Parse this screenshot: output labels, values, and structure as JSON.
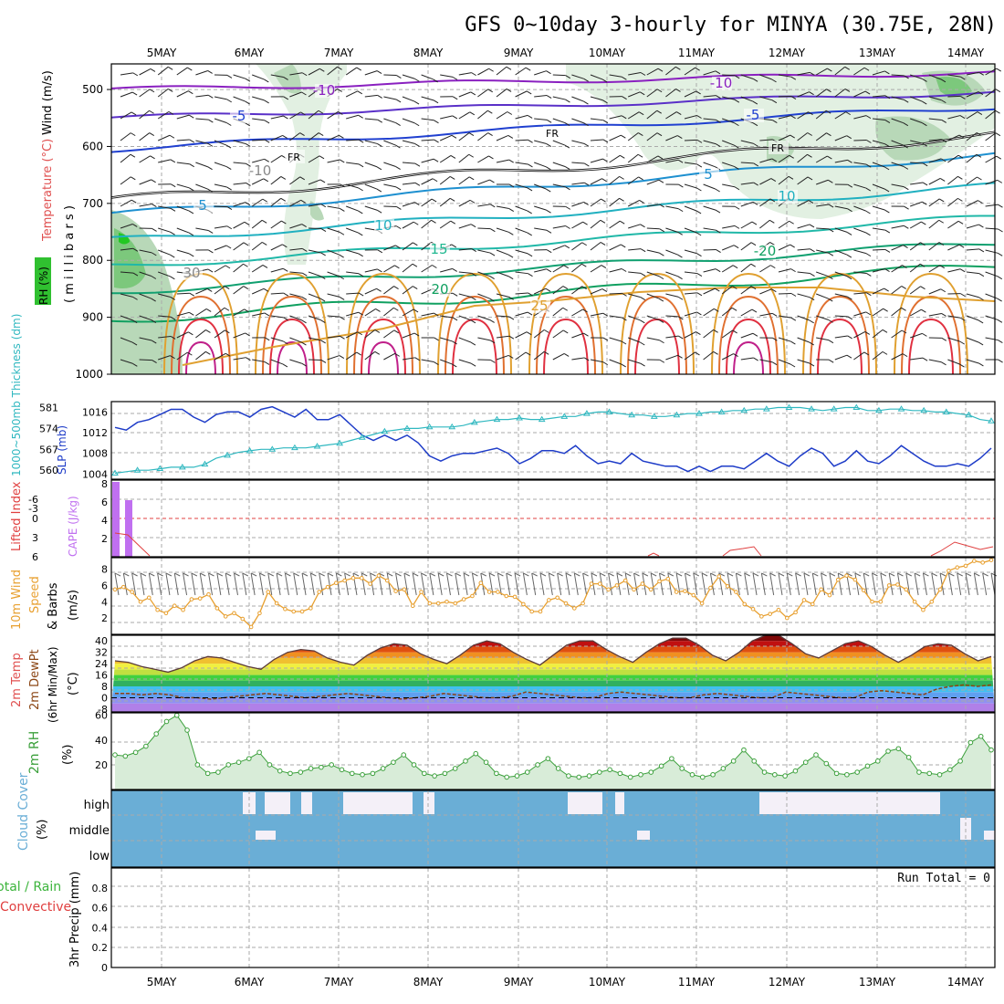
{
  "title": "GFS 0~10day 3-hourly for MINYA (30.75E, 28N)",
  "days": [
    "5MAY",
    "6MAY",
    "7MAY",
    "8MAY",
    "9MAY",
    "10MAY",
    "11MAY",
    "12MAY",
    "13MAY",
    "14MAY"
  ],
  "run_total": "Run Total = 0",
  "colors": {
    "frame": "#000000",
    "grid": "#aaaaaa",
    "slp": "#1e3cc8",
    "thickness": "#30b8c0",
    "cape": "#c070f0",
    "lifted": "#e04040",
    "wind_speed": "#e8a030",
    "dewpt": "#8b4513",
    "rh": "#3ca03c",
    "rh_fill": "#d8ecd8",
    "cloud": "#6aaed6",
    "cloud_clear": "#f4f0f8",
    "precip_total": "#3cb43c",
    "precip_conv": "#e04040"
  },
  "labels": {
    "upper_wind": "Wind (m/s)",
    "upper_temp": "Temperature (°C)",
    "upper_rh": "RH (%)",
    "upper_mb": "( m i l l i b a r s )",
    "thick": "1000~500mb Thickness (dm)",
    "slp": "SLP (mb)",
    "cape": "CAPE (J/kg)",
    "lifted": "Lifted Index",
    "wind10_a": "10m Wind",
    "wind10_b": "Speed",
    "wind10_c": "& Barbs",
    "wind10_unit": "(m/s)",
    "t2_a": "2m Temp",
    "t2_b": "2m DewPt",
    "t2_c": "(6hr Min/Max)",
    "t2_unit": "(°C)",
    "rh2": "2m RH",
    "rh2_unit": "(%)",
    "cloud": "Cloud Cover",
    "cloud_unit": "(%)",
    "precip_a": "Total / Rain",
    "precip_b": "Convective",
    "precip_unit": "3hr Precip (mm)"
  },
  "upper_air": {
    "pressure_ticks": [
      "500",
      "600",
      "700",
      "800",
      "900",
      "1000"
    ],
    "contour_labels": [
      {
        "text": "-10",
        "color": "#8a20c0"
      },
      {
        "text": "-10",
        "color": "#8a20c0"
      },
      {
        "text": "-5",
        "color": "#2040d0"
      },
      {
        "text": "-5",
        "color": "#2040d0"
      },
      {
        "text": "FR",
        "color": "#000000"
      },
      {
        "text": "FR",
        "color": "#000000"
      },
      {
        "text": "FR",
        "color": "#000000"
      },
      {
        "text": "5",
        "color": "#1e90d0"
      },
      {
        "text": "5",
        "color": "#1e90d0"
      },
      {
        "text": "10",
        "color": "#20b0c0"
      },
      {
        "text": "10",
        "color": "#20b0c0"
      },
      {
        "text": "15",
        "color": "#20b890"
      },
      {
        "text": "20",
        "color": "#10a060"
      },
      {
        "text": "-20",
        "color": "#10a060"
      },
      {
        "text": "25",
        "color": "#e0a030"
      },
      {
        "text": "-10",
        "color": "#888888"
      },
      {
        "text": "30",
        "color": "#888888"
      }
    ]
  },
  "chart_data": [
    {
      "type": "line",
      "name": "SLP",
      "ylabel": "SLP (mb)",
      "ylim": [
        1003,
        1018
      ],
      "yticks": [
        "1004",
        "1008",
        "1012",
        "1016"
      ],
      "values": [
        1013,
        1012.5,
        1014,
        1014.5,
        1015.5,
        1016.5,
        1016.5,
        1015,
        1014,
        1015.5,
        1016,
        1016,
        1015,
        1016.5,
        1017,
        1016,
        1015,
        1016.5,
        1014.5,
        1014.5,
        1015.5,
        1013.5,
        1011.5,
        1010.5,
        1011.5,
        1010.5,
        1011.5,
        1010,
        1007.5,
        1006.5,
        1007.5,
        1008,
        1008,
        1008.5,
        1009,
        1008,
        1006,
        1007,
        1008.5,
        1008.5,
        1008,
        1009.5,
        1007.5,
        1006,
        1006.5,
        1006,
        1008,
        1006.5,
        1006,
        1005.5,
        1005.5,
        1004.5,
        1005.5,
        1004.5,
        1005.5,
        1005.5,
        1005,
        1006.5,
        1008,
        1006.5,
        1005.5,
        1007.5,
        1009,
        1008,
        1005.5,
        1006.5,
        1008.5,
        1006.5,
        1006,
        1007.5,
        1009.5,
        1008,
        1006.5,
        1005.5,
        1005.5,
        1006,
        1005.5,
        1007,
        1009
      ]
    },
    {
      "type": "line",
      "name": "Thickness",
      "ylabel": "1000~500mb Thickness (dm)",
      "yticks": [
        "560",
        "567",
        "574",
        "581"
      ],
      "values": [
        559,
        559.5,
        560,
        560,
        560.5,
        561,
        561,
        561,
        562,
        564,
        565,
        566,
        566.5,
        567,
        567,
        567.5,
        567.5,
        567.5,
        568,
        568.5,
        569,
        570,
        571,
        572,
        573,
        573.5,
        574,
        574,
        574.5,
        574.5,
        574.5,
        575,
        576,
        576.5,
        577,
        577,
        577.5,
        577,
        577,
        577.5,
        578,
        578,
        579,
        579.5,
        579.5,
        579,
        578.5,
        578.5,
        578,
        578,
        578.5,
        579,
        579,
        579.5,
        579.5,
        580,
        580,
        580.5,
        580.5,
        581,
        581,
        581,
        580.5,
        580,
        580.5,
        581,
        581,
        580,
        580,
        580.5,
        580.5,
        580,
        580,
        579.5,
        579.5,
        579,
        578.5,
        577,
        576.5
      ]
    },
    {
      "type": "bar",
      "name": "CAPE",
      "ylabel": "CAPE (J/kg)",
      "yticks": [
        "2",
        "4",
        "6",
        "8"
      ],
      "lifted_ticks": [
        "-6",
        "-3",
        "0",
        "3",
        "6"
      ],
      "bars": [
        {
          "day_index": 0,
          "value": 8.2
        },
        {
          "day_index": 1,
          "value": 6.2
        }
      ],
      "lifted_index": [
        4.2,
        4.6,
        5.6
      ]
    },
    {
      "type": "line",
      "name": "10m Wind Speed",
      "ylabel": "(m/s)",
      "ylim": [
        0,
        9
      ],
      "yticks": [
        "2",
        "4",
        "6",
        "8"
      ],
      "values": [
        5.5,
        5.8,
        5.2,
        4,
        4.5,
        3,
        2.6,
        3.5,
        3,
        4.3,
        4.4,
        4.9,
        3.2,
        2.2,
        2.6,
        1.9,
        0.9,
        2.6,
        5.2,
        3.8,
        3.1,
        2.8,
        2.8,
        3.2,
        5.2,
        5.8,
        6.3,
        6.6,
        6.9,
        6.9,
        6.2,
        7.2,
        6.6,
        5.3,
        5.5,
        3.5,
        5.2,
        3.8,
        3.8,
        4,
        3.8,
        4.3,
        4.7,
        6.3,
        5.2,
        5.2,
        4.7,
        4.6,
        3.7,
        2.8,
        2.8,
        4.2,
        4.5,
        3.8,
        3.2,
        3.8,
        6.2,
        6.2,
        5.5,
        6,
        6.6,
        5.5,
        6.2,
        5.5,
        6.5,
        6.8,
        5.2,
        5.3,
        4.8,
        3.8,
        5.7,
        7.1,
        5.9,
        5.2,
        3.7,
        3.1,
        2.2,
        2.5,
        3,
        2,
        2.7,
        4.2,
        3.7,
        5.5,
        4.8,
        6.7,
        7.2,
        6.7,
        5.4,
        4,
        4,
        6,
        6.1,
        5.5,
        4,
        3,
        4,
        5.5,
        7.8,
        8.2,
        8.4,
        9,
        8.8,
        9.1
      ]
    },
    {
      "type": "area",
      "name": "2m Temp",
      "ylabel": "(°C)",
      "yticks": [
        "-8",
        "0",
        "8",
        "16",
        "24",
        "32",
        "40"
      ],
      "temp": [
        26,
        25,
        22,
        20,
        18,
        21,
        26,
        29,
        28,
        25,
        22,
        20,
        27,
        32,
        34,
        33,
        28,
        25,
        23,
        30,
        35,
        38,
        37,
        31,
        27,
        24,
        30,
        37,
        40,
        38,
        32,
        27,
        23,
        30,
        37,
        40,
        40,
        34,
        29,
        25,
        32,
        38,
        42,
        42,
        37,
        30,
        26,
        32,
        40,
        44,
        44,
        38,
        31,
        28,
        33,
        38,
        40,
        36,
        30,
        25,
        30,
        36,
        38,
        37,
        31,
        26,
        29
      ],
      "dewpt": [
        3,
        3,
        2,
        3,
        2,
        0,
        0,
        -1,
        0,
        1,
        2,
        3,
        2,
        1,
        0,
        1,
        2,
        3,
        2,
        1,
        0,
        -1,
        0,
        1,
        3,
        2,
        1,
        0,
        0,
        1,
        4,
        3,
        2,
        1,
        0,
        0,
        3,
        4,
        3,
        2,
        1,
        0,
        0,
        2,
        3,
        2,
        1,
        0,
        0,
        4,
        3,
        2,
        1,
        0,
        0,
        4,
        5,
        4,
        3,
        2,
        6,
        8,
        9,
        8,
        9
      ]
    },
    {
      "type": "area",
      "name": "2m RH",
      "ylabel": "(%)",
      "ylim": [
        0,
        62
      ],
      "yticks": [
        "20",
        "40",
        "60"
      ],
      "values": [
        28,
        27,
        30,
        35,
        45,
        55,
        60,
        48,
        20,
        13,
        14,
        20,
        22,
        25,
        30,
        20,
        15,
        13,
        14,
        17,
        18,
        20,
        16,
        13,
        12,
        13,
        17,
        22,
        28,
        20,
        13,
        11,
        13,
        17,
        23,
        29,
        22,
        13,
        10,
        11,
        14,
        20,
        25,
        17,
        11,
        10,
        11,
        14,
        16,
        13,
        10,
        12,
        14,
        19,
        25,
        17,
        12,
        10,
        12,
        17,
        23,
        32,
        23,
        14,
        12,
        11,
        15,
        22,
        28,
        21,
        13,
        12,
        14,
        19,
        23,
        31,
        33,
        26,
        14,
        13,
        12,
        16,
        23,
        38,
        43,
        32
      ]
    },
    {
      "type": "heatmap",
      "name": "Cloud Cover",
      "ylabel": "(%)",
      "yticks": [
        "high",
        "middle",
        "low"
      ],
      "high_gaps": [
        [
          266,
          274
        ],
        [
          274,
          280
        ],
        [
          290,
          318
        ],
        [
          330,
          342
        ],
        [
          376,
          392
        ],
        [
          392,
          400
        ],
        [
          400,
          414
        ],
        [
          414,
          452
        ],
        [
          464,
          476
        ],
        [
          622,
          636
        ],
        [
          636,
          650
        ],
        [
          650,
          660
        ],
        [
          674,
          684
        ],
        [
          832,
          870
        ],
        [
          870,
          880
        ],
        [
          880,
          892
        ],
        [
          892,
          906
        ],
        [
          906,
          920
        ],
        [
          920,
          960
        ],
        [
          960,
          968
        ],
        [
          968,
          980
        ],
        [
          980,
          1020
        ],
        [
          1020,
          1030
        ]
      ],
      "mid_gaps": [
        [
          280,
          302
        ],
        [
          698,
          712
        ],
        [
          1052,
          1064
        ],
        [
          1078,
          1090
        ]
      ]
    },
    {
      "type": "bar",
      "name": "3hr Precip",
      "ylabel": "3hr Precip (mm)",
      "ylim": [
        0,
        1
      ],
      "yticks": [
        "0",
        "0.2",
        "0.4",
        "0.6",
        "0.8"
      ],
      "values": []
    }
  ]
}
